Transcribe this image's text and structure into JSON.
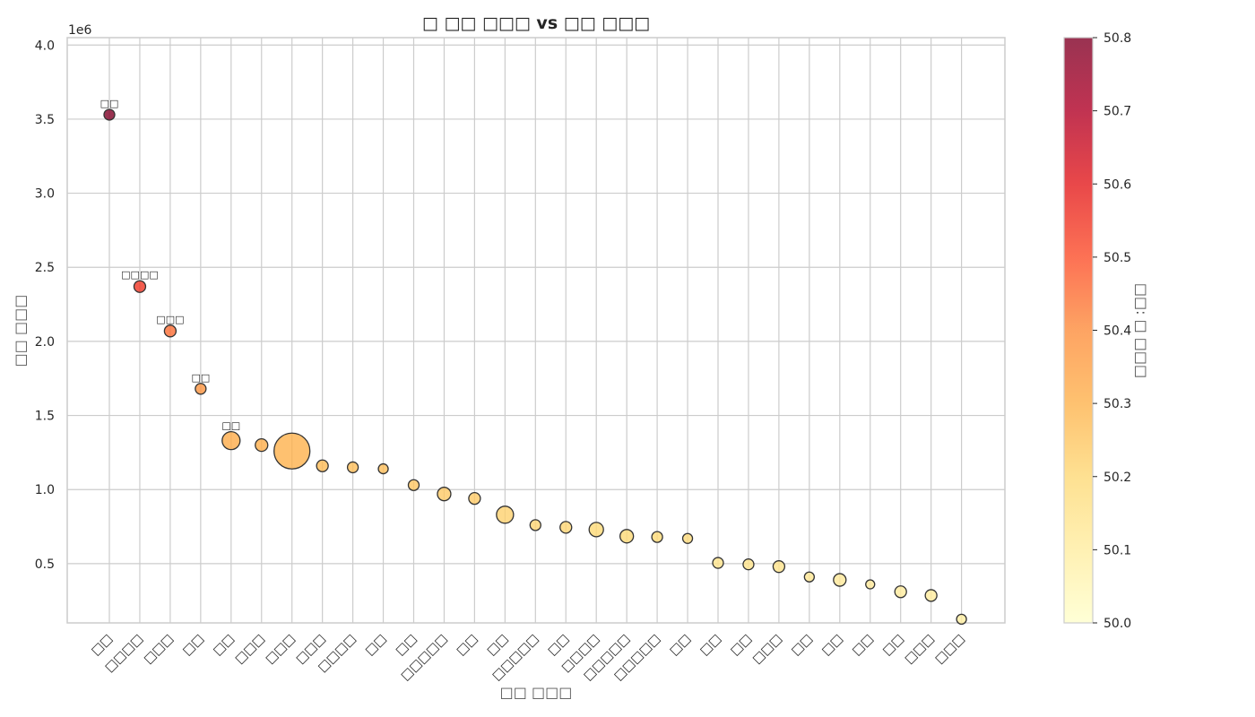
{
  "chart_data": {
    "type": "scatter",
    "title": "□ □□ □□□ vs □□ □□□",
    "xlabel": "□□ □□□",
    "ylabel": "□□ □□□",
    "y_offset_label": "1e6",
    "ylim": [
      0.1,
      4.05
    ],
    "yticks": [
      0.5,
      1.0,
      1.5,
      2.0,
      2.5,
      3.0,
      3.5,
      4.0
    ],
    "grid": true,
    "categories": [
      "□□",
      "□□□□",
      "□□□",
      "□□",
      "□□",
      "□□□",
      "□□□",
      "□□□",
      "□□□□",
      "□□",
      "□□",
      "□□□□□",
      "□□",
      "□□",
      "□□□□□",
      "□□",
      "□□□□",
      "□□□□□",
      "□□□□□",
      "□□",
      "□□",
      "□□",
      "□□□",
      "□□",
      "□□",
      "□□",
      "□□",
      "□□□",
      "□□□"
    ],
    "values": [
      3.53,
      2.37,
      2.07,
      1.68,
      1.33,
      1.3,
      1.26,
      1.16,
      1.15,
      1.14,
      1.03,
      0.97,
      0.94,
      0.83,
      0.76,
      0.745,
      0.73,
      0.685,
      0.68,
      0.67,
      0.505,
      0.495,
      0.48,
      0.41,
      0.39,
      0.36,
      0.31,
      0.285,
      0.125
    ],
    "sizes": [
      12,
      13,
      13,
      12,
      20,
      14,
      40,
      13,
      12,
      11,
      12,
      15,
      13,
      19,
      12,
      13,
      16,
      15,
      12,
      11,
      12,
      12,
      13,
      11,
      14,
      10,
      13,
      13,
      11
    ],
    "color_values": [
      50.8,
      50.55,
      50.45,
      50.38,
      50.32,
      50.31,
      50.3,
      50.28,
      50.27,
      50.27,
      50.25,
      50.24,
      50.24,
      50.22,
      50.21,
      50.21,
      50.2,
      50.2,
      50.2,
      50.19,
      50.15,
      50.15,
      50.15,
      50.13,
      50.12,
      50.12,
      50.11,
      50.11,
      50.1
    ],
    "annotations": [
      {
        "index": 0,
        "text": "□□"
      },
      {
        "index": 1,
        "text": "□□□□"
      },
      {
        "index": 2,
        "text": "□□□"
      },
      {
        "index": 3,
        "text": "□□"
      },
      {
        "index": 4,
        "text": "□□"
      }
    ],
    "colorbar": {
      "label": "□□: □ □□□",
      "min": 50.0,
      "max": 50.8,
      "ticks": [
        50.0,
        50.1,
        50.2,
        50.3,
        50.4,
        50.5,
        50.6,
        50.7,
        50.8
      ],
      "colormap": [
        "#ffffcc",
        "#ffeda0",
        "#fed976",
        "#feb24c",
        "#fd8d3c",
        "#fc4e2a",
        "#e31a1c",
        "#b10026",
        "#800026"
      ]
    }
  }
}
